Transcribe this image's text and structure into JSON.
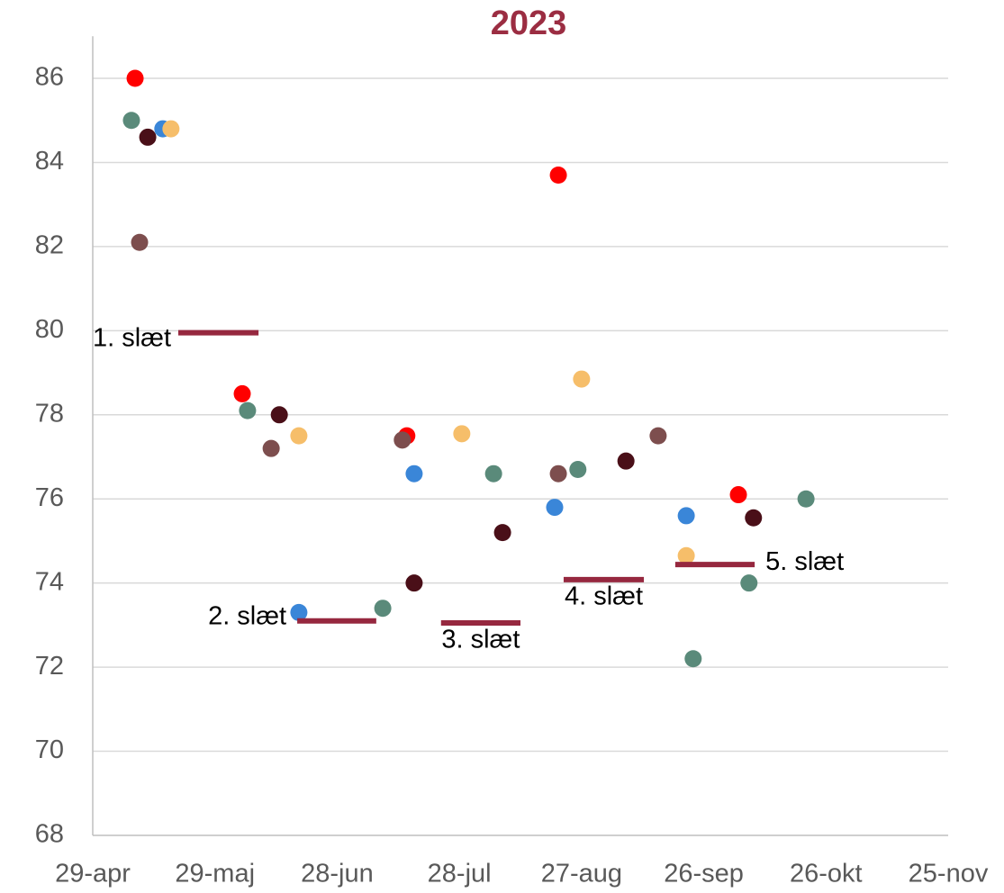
{
  "chart_data": {
    "type": "scatter",
    "title": "2023",
    "xlim": [
      119,
      329
    ],
    "xticks": [
      {
        "value": 119,
        "label": "29-apr"
      },
      {
        "value": 149,
        "label": "29-maj"
      },
      {
        "value": 179,
        "label": "28-jun"
      },
      {
        "value": 209,
        "label": "28-jul"
      },
      {
        "value": 239,
        "label": "27-aug"
      },
      {
        "value": 269,
        "label": "26-sep"
      },
      {
        "value": 299,
        "label": "26-okt"
      },
      {
        "value": 329,
        "label": "25-nov"
      }
    ],
    "ylim": [
      68,
      87
    ],
    "yticks": [
      68,
      70,
      72,
      74,
      76,
      78,
      80,
      82,
      84,
      86
    ],
    "grid": true,
    "series": [
      {
        "color": "#ff0000",
        "x": [
          129.4,
          155.7,
          196.1,
          233.3,
          277.5
        ],
        "values": [
          86,
          78.5,
          77.5,
          83.7,
          76.1
        ]
      },
      {
        "color": "#5a8a7a",
        "x": [
          128.5,
          157,
          190.2,
          217.4,
          238.1,
          266.4,
          280.1,
          294.1
        ],
        "values": [
          85,
          78.1,
          73.4,
          76.6,
          76.7,
          72.2,
          74,
          76
        ]
      },
      {
        "color": "#3a86d8",
        "x": [
          136.2,
          169.6,
          197.9,
          232.4,
          264.7
        ],
        "values": [
          84.8,
          73.3,
          76.6,
          75.8,
          75.6
        ]
      },
      {
        "color": "#f6be6a",
        "x": [
          138.2,
          169.6,
          209.6,
          239,
          264.7
        ],
        "values": [
          84.8,
          77.5,
          77.55,
          78.85,
          74.65
        ]
      },
      {
        "color": "#4a0f18",
        "x": [
          132.5,
          164.8,
          197.9,
          219.6,
          249.9,
          281.2
        ],
        "values": [
          84.6,
          78,
          74,
          75.2,
          76.9,
          75.55
        ]
      },
      {
        "color": "#7d4e4e",
        "x": [
          130.5,
          162.8,
          195,
          233.3,
          257.8
        ],
        "values": [
          82.1,
          77.2,
          77.4,
          76.6,
          77.5
        ]
      }
    ],
    "segments": [
      {
        "label": "1. slæt",
        "x": [
          140,
          159.7
        ],
        "y": 79.95
      },
      {
        "label": "2. slæt",
        "x": [
          169.2,
          188.6
        ],
        "y": 73.1
      },
      {
        "label": "3. slæt",
        "x": [
          204.5,
          224
        ],
        "y": 73.05
      },
      {
        "label": "4. slæt",
        "x": [
          234.6,
          254.3
        ],
        "y": 74.08
      },
      {
        "label": "5. slæt",
        "x": [
          262,
          281.5
        ],
        "y": 74.44
      }
    ],
    "segment_color": "#96283f"
  }
}
